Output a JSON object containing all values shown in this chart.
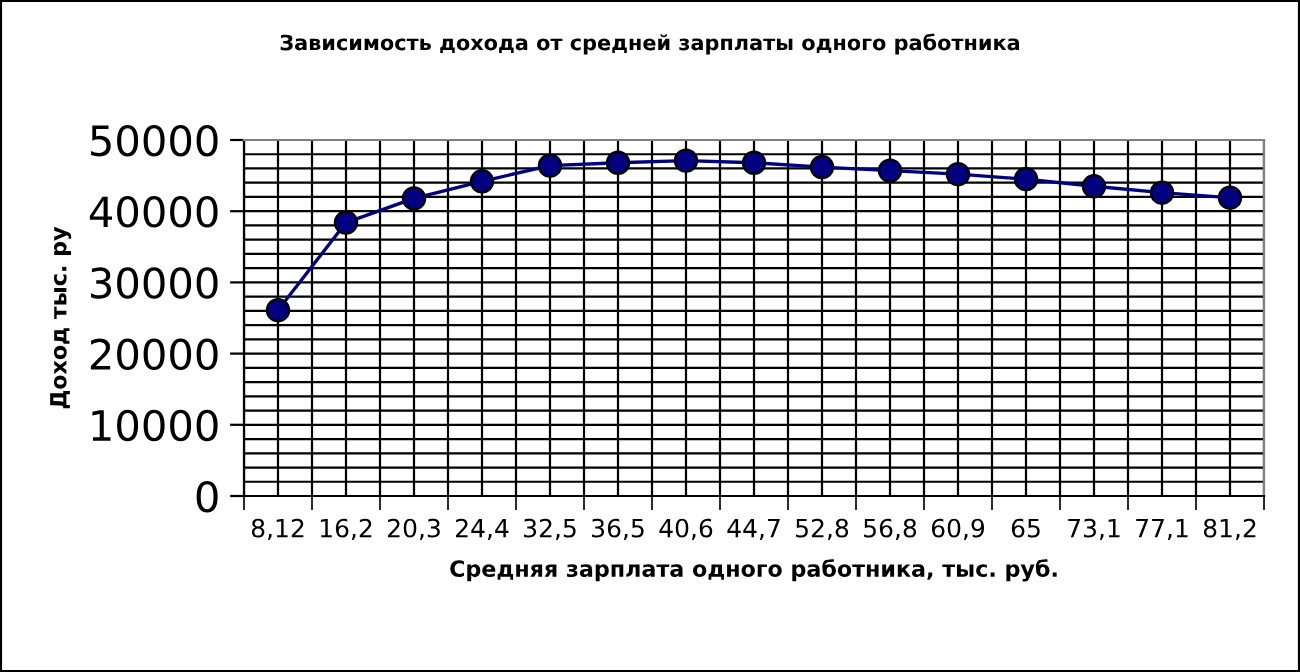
{
  "chart_data": {
    "type": "line",
    "title": "Зависимость дохода от средней зарплаты одного работника",
    "xlabel": "Средняя зарплата одного работника, тыс. руб.",
    "ylabel": "Доход тыс. ру",
    "categories": [
      "8,12",
      "16,2",
      "20,3",
      "24,4",
      "32,5",
      "36,5",
      "40,6",
      "44,7",
      "52,8",
      "56,8",
      "60,9",
      "65",
      "73,1",
      "77,1",
      "81,2"
    ],
    "series": [
      {
        "color": "#000080",
        "values": [
          26100,
          38400,
          41800,
          44200,
          46400,
          46800,
          47100,
          46800,
          46200,
          45700,
          45200,
          44500,
          43500,
          42600,
          41900
        ]
      }
    ],
    "ylim": [
      0,
      50000
    ],
    "yticks": [
      0,
      10000,
      20000,
      30000,
      40000,
      50000
    ],
    "grid": true,
    "marker": "circle",
    "line_style": "solid"
  }
}
